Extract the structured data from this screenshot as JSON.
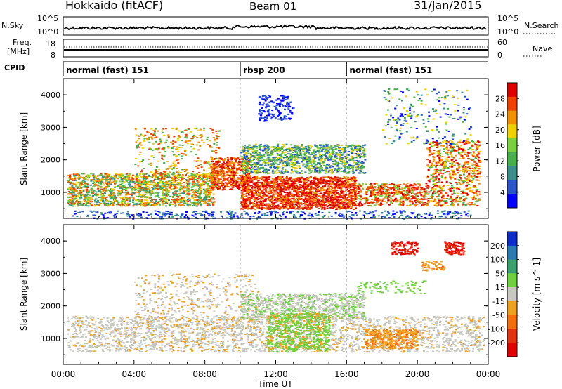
{
  "header": {
    "station": "Hokkaido (fitACF)",
    "beam": "Beam 01",
    "date": "31/Jan/2015"
  },
  "strip_labels": {
    "nsky": "N.Sky",
    "nsky_top": "10^5",
    "nsky_bottom": "10^0",
    "nsearch": "N.Search",
    "nsearch_top": "10^5",
    "nsearch_bottom": "10^0",
    "freq_line1": "Freq.",
    "freq_line2": "[MHz]",
    "freq_top": "18",
    "freq_bottom": "8",
    "nave": "Nave",
    "nave_top": "60",
    "nave_bottom": "0",
    "cpid": "CPID"
  },
  "cpid_segments": [
    {
      "label": "normal (fast) 151",
      "start_hour": 0
    },
    {
      "label": "rbsp 200",
      "start_hour": 10
    },
    {
      "label": "normal (fast) 151",
      "start_hour": 16
    }
  ],
  "colors": {
    "power": [
      "#0000ff",
      "#2a55c8",
      "#3a8f8a",
      "#48b04a",
      "#78d040",
      "#f0d000",
      "#f09000",
      "#f04000",
      "#e00000"
    ],
    "velocity": [
      "#0c2cc8",
      "#2a7ab0",
      "#3aa070",
      "#70d040",
      "#c8c8c0",
      "#f0a020",
      "#f07010",
      "#e03010",
      "#e00000"
    ]
  },
  "chart_data": [
    {
      "type": "heatmap",
      "title": "Power",
      "ylabel": "Slant Range [km]",
      "xlabel": "Time UT",
      "ylim": [
        200,
        4500
      ],
      "xlim_hours": [
        0,
        24
      ],
      "yticks": [
        "1000",
        "2000",
        "3000",
        "4000"
      ],
      "colorbar_label": "Power [dB]",
      "colorbar_ticks": [
        "4",
        "8",
        "12",
        "16",
        "20",
        "24",
        "28"
      ],
      "echo_regions": [
        {
          "x": [
            0.3,
            8.5
          ],
          "y": [
            700,
            1500
          ],
          "level": "12-24 dB"
        },
        {
          "x": [
            8.5,
            10.5
          ],
          "y": [
            1200,
            2000
          ],
          "level": "24-28 dB"
        },
        {
          "x": [
            10,
            16
          ],
          "y": [
            500,
            1500
          ],
          "level": "28+ dB"
        },
        {
          "x": [
            10,
            17
          ],
          "y": [
            1700,
            2500
          ],
          "level": "12-20 dB"
        },
        {
          "x": [
            20.5,
            23
          ],
          "y": [
            600,
            2500
          ],
          "level": "16-28 dB"
        }
      ]
    },
    {
      "type": "heatmap",
      "title": "Velocity",
      "ylabel": "Slant Range [km]",
      "xlabel": "Time UT",
      "ylim": [
        200,
        4500
      ],
      "xlim_hours": [
        0,
        24
      ],
      "yticks": [
        "1000",
        "2000",
        "3000",
        "4000"
      ],
      "colorbar_label": "Velocity [m s^-1]",
      "colorbar_ticks": [
        "200",
        "100",
        "50",
        "15",
        "-15",
        "-50",
        "-100",
        "-200"
      ],
      "echo_regions": [
        {
          "x": [
            0,
            23.7
          ],
          "y": [
            500,
            2500
          ],
          "level": "-15 to 15 m/s"
        },
        {
          "x": [
            11.5,
            15
          ],
          "y": [
            600,
            1800
          ],
          "level": "15 to 50 m/s"
        },
        {
          "x": [
            17,
            20
          ],
          "y": [
            700,
            1300
          ],
          "level": "-50 to -100 m/s"
        },
        {
          "x": [
            18.5,
            22.5
          ],
          "y": [
            3600,
            4000
          ],
          "level": "-100 to -200 m/s"
        }
      ]
    }
  ],
  "xaxis": {
    "ticks": [
      "00:00",
      "04:00",
      "08:00",
      "12:00",
      "16:00",
      "20:00",
      "00:00"
    ],
    "label": "Time UT"
  }
}
